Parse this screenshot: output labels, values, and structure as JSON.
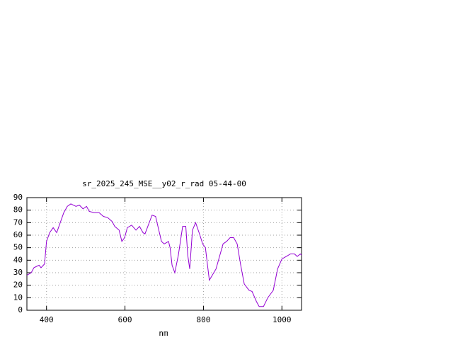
{
  "chart_data": {
    "type": "line",
    "title": "sr_2025_245_MSE__y02_r_rad 05-44-00",
    "x_label": "nm",
    "x": [
      350,
      361,
      368,
      381,
      386,
      395,
      400,
      408,
      417,
      426,
      435,
      444,
      453,
      462,
      475,
      484,
      493,
      502,
      509,
      521,
      534,
      545,
      556,
      567,
      574,
      585,
      592,
      599,
      606,
      617,
      628,
      637,
      646,
      651,
      669,
      678,
      693,
      700,
      711,
      715,
      720,
      727,
      736,
      747,
      755,
      760,
      765,
      772,
      780,
      790,
      798,
      805,
      815,
      832,
      850,
      859,
      868,
      877,
      886,
      895,
      904,
      916,
      924,
      935,
      942,
      953,
      964,
      978,
      989,
      1000,
      1011,
      1022,
      1032,
      1039,
      1047,
      1050
    ],
    "series": [
      {
        "name": "sr_2025_245_MSE__y02_r_rad",
        "color": "#9400d3",
        "values": [
          28,
          30,
          34,
          36,
          34,
          37,
          55,
          62,
          66,
          62,
          70,
          78,
          83,
          85,
          83,
          84,
          81,
          83,
          79,
          78,
          78,
          75,
          74,
          71,
          67,
          64,
          55,
          58,
          66,
          68,
          64,
          67,
          62,
          61,
          76,
          75,
          55,
          53,
          55,
          50,
          36,
          30,
          44,
          67,
          67,
          44,
          33,
          64,
          70,
          61,
          53,
          50,
          24,
          33,
          53,
          55,
          58,
          58,
          53,
          36,
          21,
          16,
          15,
          7,
          3,
          3,
          10,
          16,
          33,
          41,
          43,
          45,
          45,
          43,
          45,
          44
        ]
      }
    ],
    "xlim": [
      350,
      1050
    ],
    "ylim": [
      0,
      90
    ],
    "xticks": [
      400,
      600,
      800,
      1000
    ],
    "yticks": [
      0,
      10,
      20,
      30,
      40,
      50,
      60,
      70,
      80,
      90
    ],
    "grid": true
  }
}
